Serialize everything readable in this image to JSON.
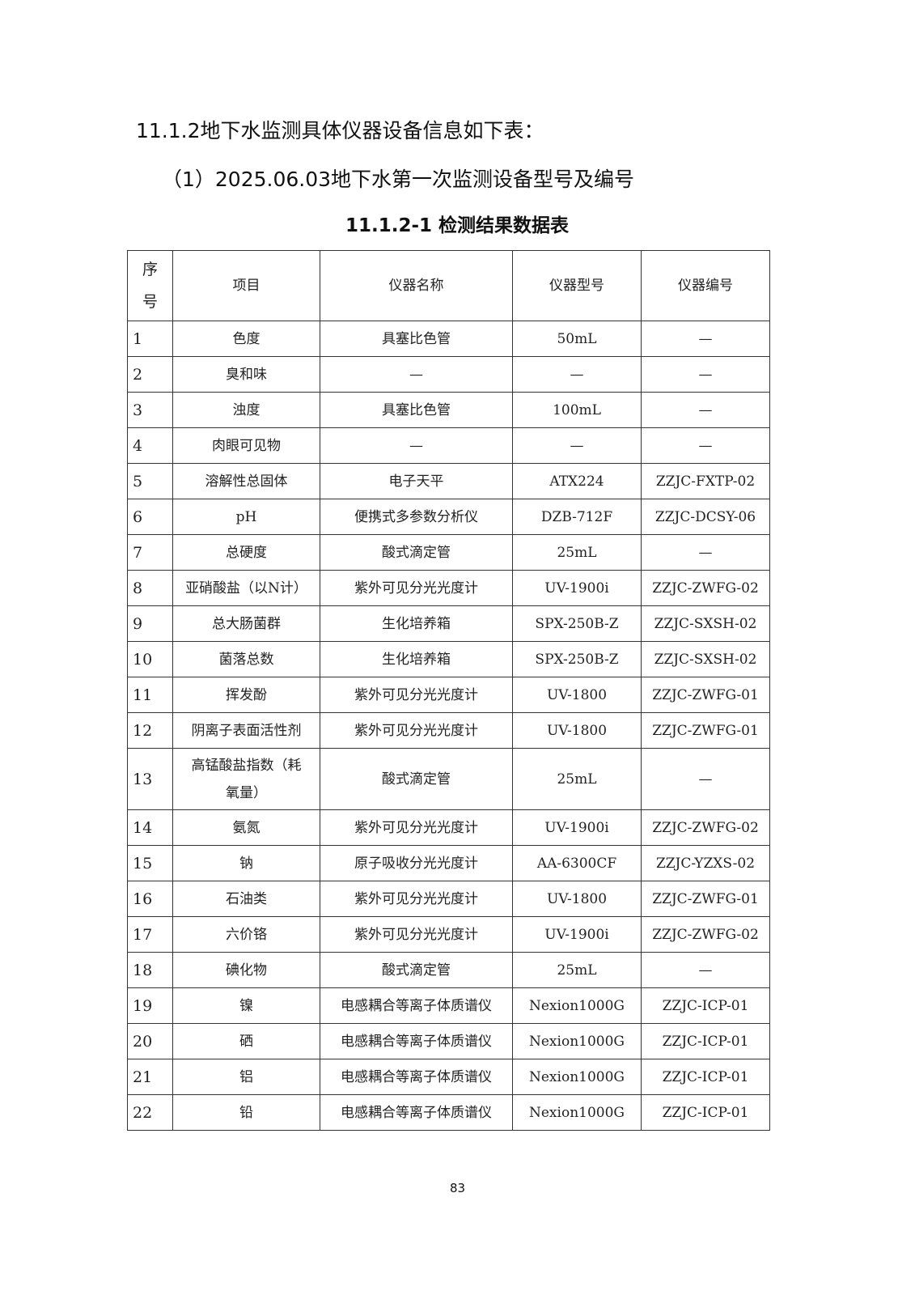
{
  "section_heading": "11.1.2地下水监测具体仪器设备信息如下表：",
  "sub_heading": "（1）2025.06.03地下水第一次监测设备型号及编号",
  "table_caption": "11.1.2-1  检测结果数据表",
  "table": {
    "headers": [
      "序号",
      "项目",
      "仪器名称",
      "仪器型号",
      "仪器编号"
    ],
    "rows": [
      [
        "1",
        "色度",
        "具塞比色管",
        "50mL",
        "—"
      ],
      [
        "2",
        "臭和味",
        "—",
        "—",
        "—"
      ],
      [
        "3",
        "浊度",
        "具塞比色管",
        "100mL",
        "—"
      ],
      [
        "4",
        "肉眼可见物",
        "—",
        "—",
        "—"
      ],
      [
        "5",
        "溶解性总固体",
        "电子天平",
        "ATX224",
        "ZZJC-FXTP-02"
      ],
      [
        "6",
        "pH",
        "便携式多参数分析仪",
        "DZB-712F",
        "ZZJC-DCSY-06"
      ],
      [
        "7",
        "总硬度",
        "酸式滴定管",
        "25mL",
        "—"
      ],
      [
        "8",
        "亚硝酸盐（以N计）",
        "紫外可见分光光度计",
        "UV-1900i",
        "ZZJC-ZWFG-02"
      ],
      [
        "9",
        "总大肠菌群",
        "生化培养箱",
        "SPX-250B-Z",
        "ZZJC-SXSH-02"
      ],
      [
        "10",
        "菌落总数",
        "生化培养箱",
        "SPX-250B-Z",
        "ZZJC-SXSH-02"
      ],
      [
        "11",
        "挥发酚",
        "紫外可见分光光度计",
        "UV-1800",
        "ZZJC-ZWFG-01"
      ],
      [
        "12",
        "阴离子表面活性剂",
        "紫外可见分光光度计",
        "UV-1800",
        "ZZJC-ZWFG-01"
      ],
      [
        "13",
        "高锰酸盐指数（耗氧量）",
        "酸式滴定管",
        "25mL",
        "—"
      ],
      [
        "14",
        "氨氮",
        "紫外可见分光光度计",
        "UV-1900i",
        "ZZJC-ZWFG-02"
      ],
      [
        "15",
        "钠",
        "原子吸收分光光度计",
        "AA-6300CF",
        "ZZJC-YZXS-02"
      ],
      [
        "16",
        "石油类",
        "紫外可见分光光度计",
        "UV-1800",
        "ZZJC-ZWFG-01"
      ],
      [
        "17",
        "六价铬",
        "紫外可见分光光度计",
        "UV-1900i",
        "ZZJC-ZWFG-02"
      ],
      [
        "18",
        "碘化物",
        "酸式滴定管",
        "25mL",
        "—"
      ],
      [
        "19",
        "镍",
        "电感耦合等离子体质谱仪",
        "Nexion1000G",
        "ZZJC-ICP-01"
      ],
      [
        "20",
        "硒",
        "电感耦合等离子体质谱仪",
        "Nexion1000G",
        "ZZJC-ICP-01"
      ],
      [
        "21",
        "铝",
        "电感耦合等离子体质谱仪",
        "Nexion1000G",
        "ZZJC-ICP-01"
      ],
      [
        "22",
        "铅",
        "电感耦合等离子体质谱仪",
        "Nexion1000G",
        "ZZJC-ICP-01"
      ]
    ]
  },
  "page_number": "83"
}
